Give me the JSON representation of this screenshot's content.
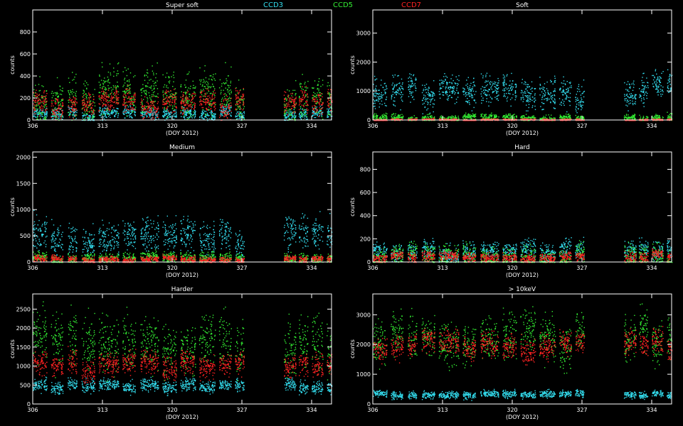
{
  "legend": {
    "ccd3": {
      "label": "CCD3",
      "color": "#33ddee"
    },
    "ccd5": {
      "label": "CCD5",
      "color": "#33ee33"
    },
    "ccd7": {
      "label": "CCD7",
      "color": "#ff2222"
    }
  },
  "chart_data": [
    {
      "type": "scatter",
      "title": "Super soft",
      "xlabel": "(DOY 2012)",
      "ylabel": "counts",
      "xlim": [
        306,
        336
      ],
      "ylim": [
        0,
        1000
      ],
      "xticks": [
        306,
        313,
        320,
        327,
        334
      ],
      "yticks": [
        0,
        200,
        400,
        600,
        800
      ],
      "series": [
        {
          "name": "CCD3",
          "level": 60,
          "spread": 25
        },
        {
          "name": "CCD5",
          "level": 200,
          "spread": 100
        },
        {
          "name": "CCD7",
          "level": 150,
          "spread": 50
        }
      ]
    },
    {
      "type": "scatter",
      "title": "Soft",
      "xlabel": "(DOY 2012)",
      "ylabel": "counts",
      "xlim": [
        306,
        336
      ],
      "ylim": [
        0,
        3800
      ],
      "xticks": [
        306,
        313,
        320,
        327,
        334
      ],
      "yticks": [
        0,
        1000,
        2000,
        3000
      ],
      "series": [
        {
          "name": "CCD3",
          "level": 1000,
          "spread": 250
        },
        {
          "name": "CCD5",
          "level": 80,
          "spread": 60
        },
        {
          "name": "CCD7",
          "level": 20,
          "spread": 15
        }
      ]
    },
    {
      "type": "scatter",
      "title": "Medium",
      "xlabel": "(DOY 2012)",
      "ylabel": "counts",
      "xlim": [
        306,
        336
      ],
      "ylim": [
        0,
        2100
      ],
      "xticks": [
        306,
        313,
        320,
        327,
        334
      ],
      "yticks": [
        0,
        500,
        1000,
        1500,
        2000
      ],
      "series": [
        {
          "name": "CCD3",
          "level": 500,
          "spread": 150
        },
        {
          "name": "CCD5",
          "level": 80,
          "spread": 50
        },
        {
          "name": "CCD7",
          "level": 60,
          "spread": 30
        }
      ]
    },
    {
      "type": "scatter",
      "title": "Hard",
      "xlabel": "(DOY 2012)",
      "ylabel": "counts",
      "xlim": [
        306,
        336
      ],
      "ylim": [
        0,
        950
      ],
      "xticks": [
        306,
        313,
        320,
        327,
        334
      ],
      "yticks": [
        0,
        200,
        400,
        600,
        800
      ],
      "series": [
        {
          "name": "CCD3",
          "level": 100,
          "spread": 40
        },
        {
          "name": "CCD5",
          "level": 50,
          "spread": 50
        },
        {
          "name": "CCD7",
          "level": 50,
          "spread": 20
        }
      ]
    },
    {
      "type": "scatter",
      "title": "Harder",
      "xlabel": "(DOY 2012)",
      "ylabel": "counts",
      "xlim": [
        306,
        336
      ],
      "ylim": [
        0,
        2900
      ],
      "xticks": [
        306,
        313,
        320,
        327,
        334
      ],
      "yticks": [
        0,
        500,
        1000,
        1500,
        2000,
        2500
      ],
      "series": [
        {
          "name": "CCD3",
          "level": 500,
          "spread": 80
        },
        {
          "name": "CCD5",
          "level": 1600,
          "spread": 350
        },
        {
          "name": "CCD7",
          "level": 1050,
          "spread": 150
        }
      ]
    },
    {
      "type": "scatter",
      "title": "> 10keV",
      "xlabel": "(DOY 2012)",
      "ylabel": "counts",
      "xlim": [
        306,
        336
      ],
      "ylim": [
        0,
        3700
      ],
      "xticks": [
        306,
        313,
        320,
        327,
        334
      ],
      "yticks": [
        0,
        1000,
        2000,
        3000
      ],
      "series": [
        {
          "name": "CCD3",
          "level": 330,
          "spread": 60
        },
        {
          "name": "CCD5",
          "level": 2200,
          "spread": 350
        },
        {
          "name": "CCD7",
          "level": 2000,
          "spread": 200
        }
      ]
    }
  ]
}
